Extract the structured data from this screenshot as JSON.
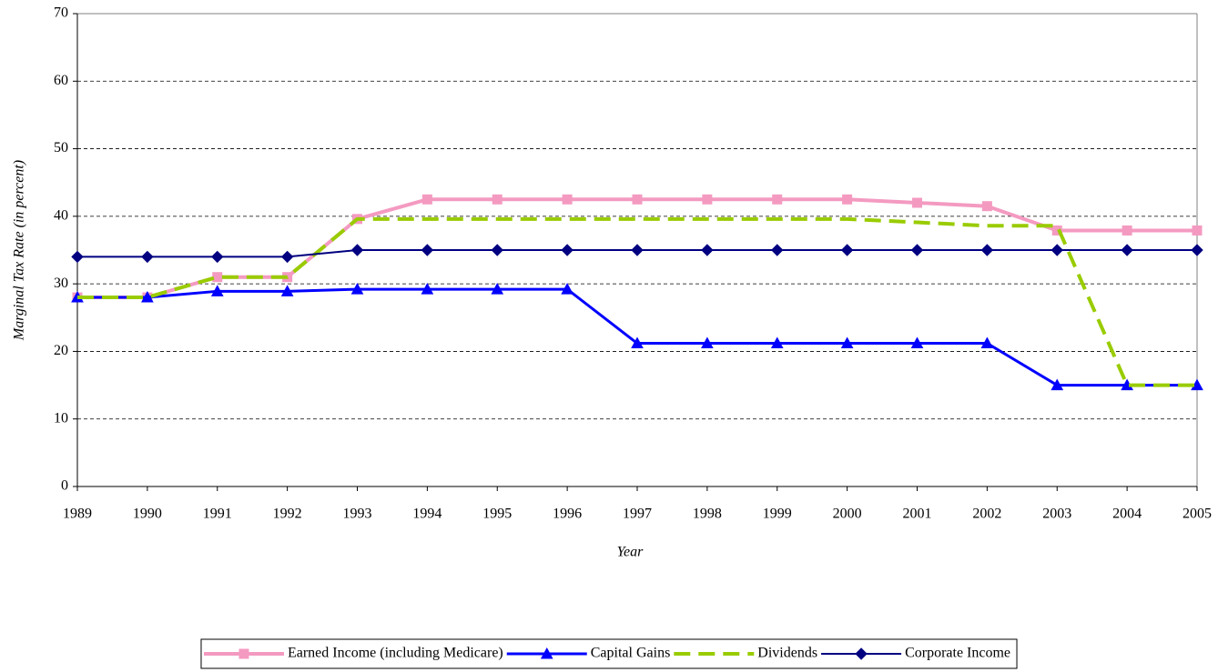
{
  "chart_data": {
    "type": "line",
    "x_label": "Year",
    "y_label": "Marginal Tax Rate (in percent)",
    "x": [
      1989,
      1990,
      1991,
      1992,
      1993,
      1994,
      1995,
      1996,
      1997,
      1998,
      1999,
      2000,
      2001,
      2002,
      2003,
      2004,
      2005
    ],
    "xlim": [
      1989,
      2005
    ],
    "xticks": [
      1989,
      1990,
      1991,
      1992,
      1993,
      1994,
      1995,
      1996,
      1997,
      1998,
      1999,
      2000,
      2001,
      2002,
      2003,
      2004,
      2005
    ],
    "ylim": [
      0,
      70
    ],
    "yticks": [
      0,
      10,
      20,
      30,
      40,
      50,
      60,
      70
    ],
    "grid": true,
    "legend": "bottom",
    "series": [
      {
        "name": "Earned Income (including Medicare)",
        "color": "#f49ac1",
        "marker": "square",
        "values": [
          28,
          28,
          31,
          31,
          39.6,
          42.5,
          42.5,
          42.5,
          42.5,
          42.5,
          42.5,
          42.5,
          42,
          41.5,
          37.9,
          37.9,
          37.9
        ]
      },
      {
        "name": "Capital Gains",
        "color": "#0000ff",
        "marker": "triangle",
        "values": [
          28,
          28,
          28.9,
          28.9,
          29.2,
          29.2,
          29.2,
          29.2,
          21.2,
          21.2,
          21.2,
          21.2,
          21.2,
          21.2,
          15,
          15,
          15
        ]
      },
      {
        "name": "Dividends",
        "color": "#99cc00",
        "dashed": true,
        "values": [
          28,
          28,
          31,
          31,
          39.6,
          39.6,
          39.6,
          39.6,
          39.6,
          39.6,
          39.6,
          39.6,
          39.1,
          38.6,
          38.6,
          15,
          15
        ]
      },
      {
        "name": "Corporate Income",
        "color": "#000080",
        "marker": "diamond",
        "values": [
          34,
          34,
          34,
          34,
          35,
          35,
          35,
          35,
          35,
          35,
          35,
          35,
          35,
          35,
          35,
          35,
          35
        ]
      }
    ]
  }
}
